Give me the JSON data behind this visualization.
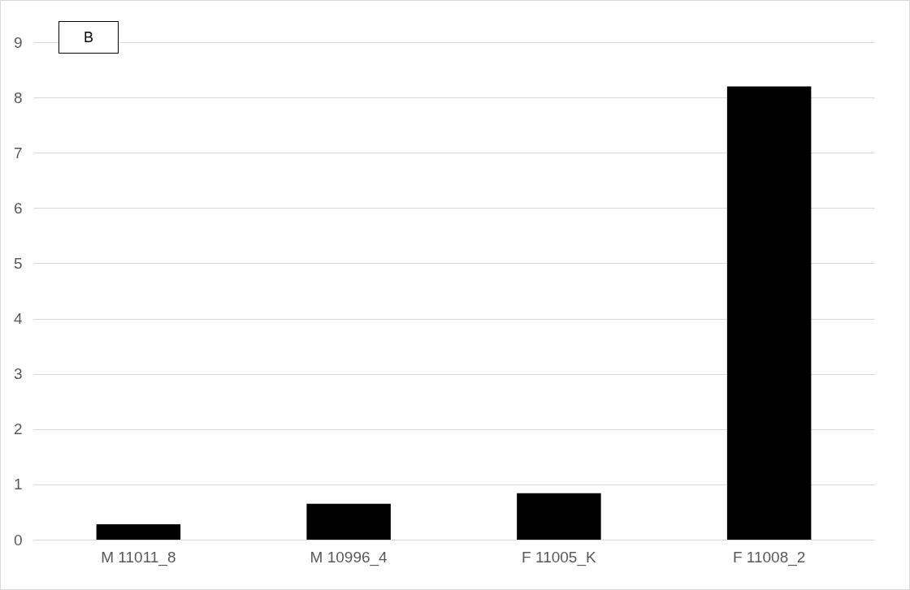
{
  "chart_data": {
    "type": "bar",
    "categories": [
      "M 11011_8",
      "M 10996_4",
      "F 11005_K",
      "F 11008_2"
    ],
    "values": [
      0.28,
      0.65,
      0.84,
      8.2
    ],
    "color": "#000000",
    "ylim": [
      0,
      9
    ],
    "yticks": [
      0,
      1,
      2,
      3,
      4,
      5,
      6,
      7,
      8,
      9
    ],
    "grid": "y",
    "annotations": [
      "B"
    ]
  }
}
